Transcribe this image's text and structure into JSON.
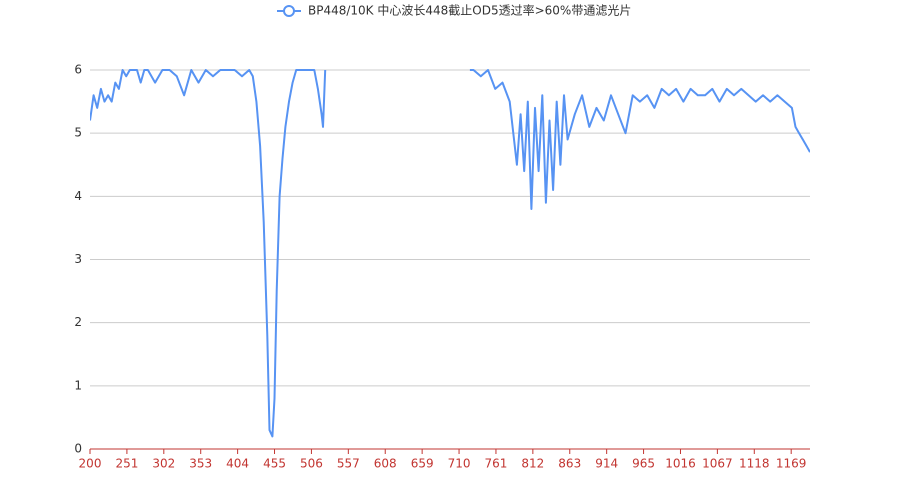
{
  "chart_data": {
    "type": "line",
    "x": [
      200,
      205,
      210,
      215,
      220,
      225,
      230,
      235,
      240,
      245,
      250,
      255,
      260,
      265,
      270,
      275,
      280,
      290,
      300,
      310,
      320,
      330,
      340,
      350,
      360,
      370,
      380,
      390,
      400,
      410,
      420,
      425,
      430,
      435,
      440,
      445,
      448,
      452,
      455,
      458,
      462,
      466,
      470,
      475,
      480,
      485,
      490,
      500,
      510,
      515,
      520,
      522,
      525,
      530,
      720,
      725,
      730,
      740,
      750,
      760,
      770,
      780,
      790,
      795,
      800,
      805,
      810,
      815,
      820,
      825,
      830,
      835,
      840,
      845,
      850,
      855,
      860,
      870,
      880,
      890,
      900,
      910,
      920,
      930,
      940,
      950,
      960,
      970,
      980,
      990,
      1000,
      1010,
      1020,
      1030,
      1040,
      1050,
      1060,
      1070,
      1080,
      1090,
      1100,
      1110,
      1120,
      1130,
      1140,
      1150,
      1160,
      1170,
      1175,
      1180,
      1185,
      1190,
      1195
    ],
    "series": [
      {
        "name": "BP448/10K 中心波长448截止OD5透过率>60%带通滤光片",
        "color": "#5793f3",
        "values": [
          5.2,
          5.6,
          5.4,
          5.7,
          5.5,
          5.6,
          5.5,
          5.8,
          5.7,
          6,
          5.9,
          6,
          6,
          6,
          5.8,
          6,
          6,
          5.8,
          6,
          6,
          5.9,
          5.6,
          6,
          5.8,
          6,
          5.9,
          6,
          6,
          6,
          5.9,
          6,
          5.9,
          5.5,
          4.8,
          3.6,
          1.8,
          0.3,
          0.2,
          0.8,
          2.5,
          4.0,
          4.6,
          5.1,
          5.5,
          5.8,
          6,
          6,
          6,
          6,
          5.7,
          5.3,
          5.1,
          6,
          null,
          null,
          6,
          6,
          5.9,
          6,
          5.7,
          5.8,
          5.5,
          4.5,
          5.3,
          4.4,
          5.5,
          3.8,
          5.4,
          4.4,
          5.6,
          3.9,
          5.2,
          4.1,
          5.5,
          4.5,
          5.6,
          4.9,
          5.3,
          5.6,
          5.1,
          5.4,
          5.2,
          5.6,
          5.3,
          5.0,
          5.6,
          5.5,
          5.6,
          5.4,
          5.7,
          5.6,
          5.7,
          5.5,
          5.7,
          5.6,
          5.6,
          5.7,
          5.5,
          5.7,
          5.6,
          5.7,
          5.6,
          5.5,
          5.6,
          5.5,
          5.6,
          5.5,
          5.4,
          5.1,
          5.0,
          4.9,
          4.8,
          4.7
        ]
      }
    ],
    "xlim": [
      200,
      1195
    ],
    "xticks": [
      200,
      251,
      302,
      353,
      404,
      455,
      506,
      557,
      608,
      659,
      710,
      761,
      812,
      863,
      914,
      965,
      1016,
      1067,
      1118,
      1169
    ],
    "ylim": [
      0,
      6
    ],
    "yticks": [
      0,
      1,
      2,
      3,
      4,
      5,
      6
    ],
    "grid": true
  }
}
